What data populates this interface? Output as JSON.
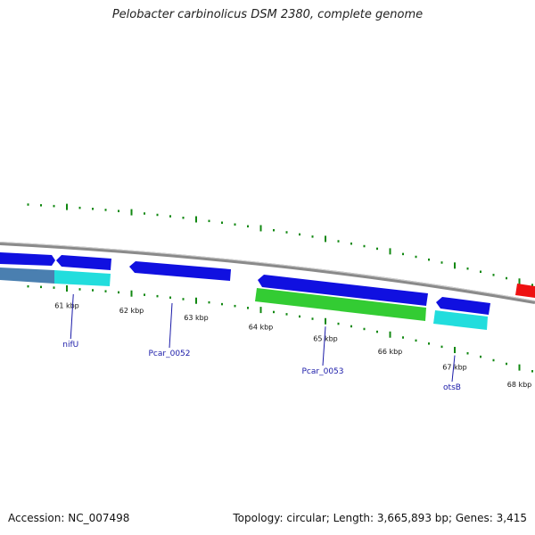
{
  "header": {
    "title": "Pelobacter carbinolicus DSM 2380, complete genome"
  },
  "footer": {
    "accession": "Accession: NC_007498",
    "stats": "Topology: circular; Length: 3,665,893 bp; Genes: 3,415"
  },
  "map": {
    "colors": {
      "backbone": "#8a8a8a",
      "forward_gene": "#1010e0",
      "reverse_gene": "#1010e0",
      "cds_green": "#33cc33",
      "cds_cyan": "#22dddd",
      "cds_steel": "#4a7fb0",
      "rna": "#ee1111",
      "tick": "#118811",
      "label_line": "#1a1aa8"
    },
    "position_labels": [
      {
        "text": "61 kbp",
        "kbp": 61
      },
      {
        "text": "62 kbp",
        "kbp": 62
      },
      {
        "text": "63 kbp",
        "kbp": 63
      },
      {
        "text": "64 kbp",
        "kbp": 64
      },
      {
        "text": "65 kbp",
        "kbp": 65
      },
      {
        "text": "66 kbp",
        "kbp": 66
      },
      {
        "text": "67 kbp",
        "kbp": 67
      },
      {
        "text": "68 kbp",
        "kbp": 68
      }
    ],
    "gene_labels": [
      {
        "text": "nifU",
        "kbp": 61.1
      },
      {
        "text": "Pcar_0052",
        "kbp": 62.6
      },
      {
        "text": "Pcar_0053",
        "kbp": 65.0
      },
      {
        "text": "otsB",
        "kbp": 67.0
      }
    ]
  }
}
